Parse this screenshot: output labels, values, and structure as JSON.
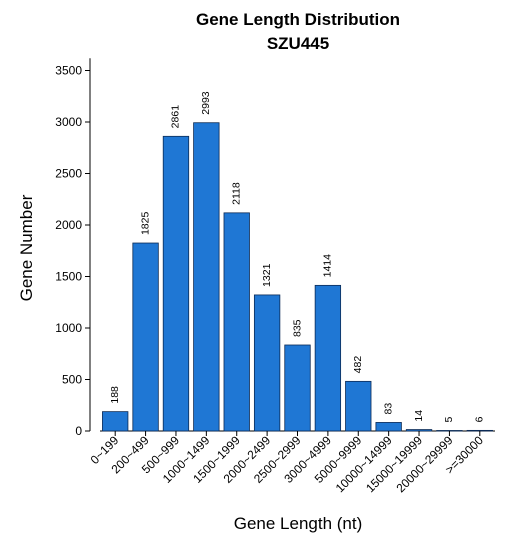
{
  "chart_data": {
    "type": "bar",
    "title": "Gene Length Distribution",
    "subtitle": "SZU445",
    "xlabel": "Gene Length (nt)",
    "ylabel": "Gene Number",
    "categories": [
      "0~199",
      "200~499",
      "500~999",
      "1000~1499",
      "1500~1999",
      "2000~2499",
      "2500~2999",
      "3000~4999",
      "5000~9999",
      "10000~14999",
      "15000~19999",
      "20000~29999",
      ">=30000"
    ],
    "values": [
      188,
      1825,
      2861,
      2993,
      2118,
      1321,
      835,
      1414,
      482,
      83,
      14,
      5,
      6
    ],
    "ylim": [
      0,
      3600
    ],
    "yticks": [
      0,
      500,
      1000,
      1500,
      2000,
      2500,
      3000,
      3500
    ],
    "bar_color": "#1f77d4",
    "grid": false,
    "legend": "none"
  }
}
